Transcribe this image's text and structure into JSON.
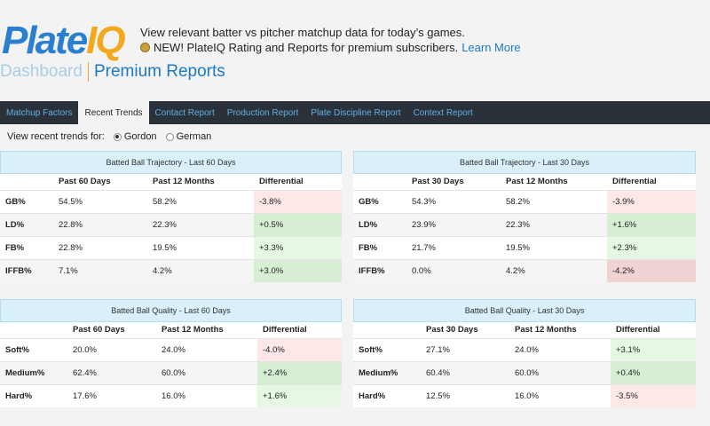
{
  "logo": {
    "part1": "Plate",
    "part2": "IQ"
  },
  "tagline": {
    "line1": "View relevant batter vs pitcher matchup data for today’s games.",
    "line2": "NEW! PlateIQ Rating and Reports for premium subscribers.",
    "learn_more": "Learn More"
  },
  "breadcrumb": {
    "dashboard": "Dashboard",
    "current": "Premium Reports"
  },
  "nav": {
    "tabs": [
      {
        "label": "Matchup Factors",
        "active": false
      },
      {
        "label": "Recent Trends",
        "active": true
      },
      {
        "label": "Contact Report",
        "active": false
      },
      {
        "label": "Production Report",
        "active": false
      },
      {
        "label": "Plate Discipline Report",
        "active": false
      },
      {
        "label": "Context Report",
        "active": false
      }
    ]
  },
  "trends": {
    "label": "View recent trends for:",
    "options": [
      {
        "label": "Gordon",
        "checked": true
      },
      {
        "label": "German",
        "checked": false
      }
    ]
  },
  "panels": [
    {
      "title": "Batted Ball Trajectory - Last 60 Days",
      "headers": [
        "",
        "Past 60 Days",
        "Past 12 Months",
        "Differential"
      ],
      "rows": [
        {
          "label": "GB%",
          "a": "54.5%",
          "b": "58.2%",
          "diff": "-3.8%",
          "tone": "neg"
        },
        {
          "label": "LD%",
          "a": "22.8%",
          "b": "22.3%",
          "diff": "+0.5%",
          "tone": "pos-strong"
        },
        {
          "label": "FB%",
          "a": "22.8%",
          "b": "19.5%",
          "diff": "+3.3%",
          "tone": "pos"
        },
        {
          "label": "IFFB%",
          "a": "7.1%",
          "b": "4.2%",
          "diff": "+3.0%",
          "tone": "pos-strong"
        }
      ]
    },
    {
      "title": "Batted Ball Trajectory - Last 30 Days",
      "headers": [
        "",
        "Past 30 Days",
        "Past 12 Months",
        "Differential"
      ],
      "rows": [
        {
          "label": "GB%",
          "a": "54.3%",
          "b": "58.2%",
          "diff": "-3.9%",
          "tone": "neg"
        },
        {
          "label": "LD%",
          "a": "23.9%",
          "b": "22.3%",
          "diff": "+1.6%",
          "tone": "pos-strong"
        },
        {
          "label": "FB%",
          "a": "21.7%",
          "b": "19.5%",
          "diff": "+2.3%",
          "tone": "pos"
        },
        {
          "label": "IFFB%",
          "a": "0.0%",
          "b": "4.2%",
          "diff": "-4.2%",
          "tone": "neg-strong"
        }
      ]
    },
    {
      "title": "Batted Ball Quality - Last 60 Days",
      "headers": [
        "",
        "Past 60 Days",
        "Past 12 Months",
        "Differential"
      ],
      "rows": [
        {
          "label": "Soft%",
          "a": "20.0%",
          "b": "24.0%",
          "diff": "-4.0%",
          "tone": "neg"
        },
        {
          "label": "Medium%",
          "a": "62.4%",
          "b": "60.0%",
          "diff": "+2.4%",
          "tone": "pos-strong"
        },
        {
          "label": "Hard%",
          "a": "17.6%",
          "b": "16.0%",
          "diff": "+1.6%",
          "tone": "pos"
        }
      ]
    },
    {
      "title": "Batted Ball Quality - Last 30 Days",
      "headers": [
        "",
        "Past 30 Days",
        "Past 12 Months",
        "Differential"
      ],
      "rows": [
        {
          "label": "Soft%",
          "a": "27.1%",
          "b": "24.0%",
          "diff": "+3.1%",
          "tone": "pos"
        },
        {
          "label": "Medium%",
          "a": "60.4%",
          "b": "60.0%",
          "diff": "+0.4%",
          "tone": "pos-strong"
        },
        {
          "label": "Hard%",
          "a": "12.5%",
          "b": "16.0%",
          "diff": "-3.5%",
          "tone": "neg"
        }
      ]
    }
  ]
}
